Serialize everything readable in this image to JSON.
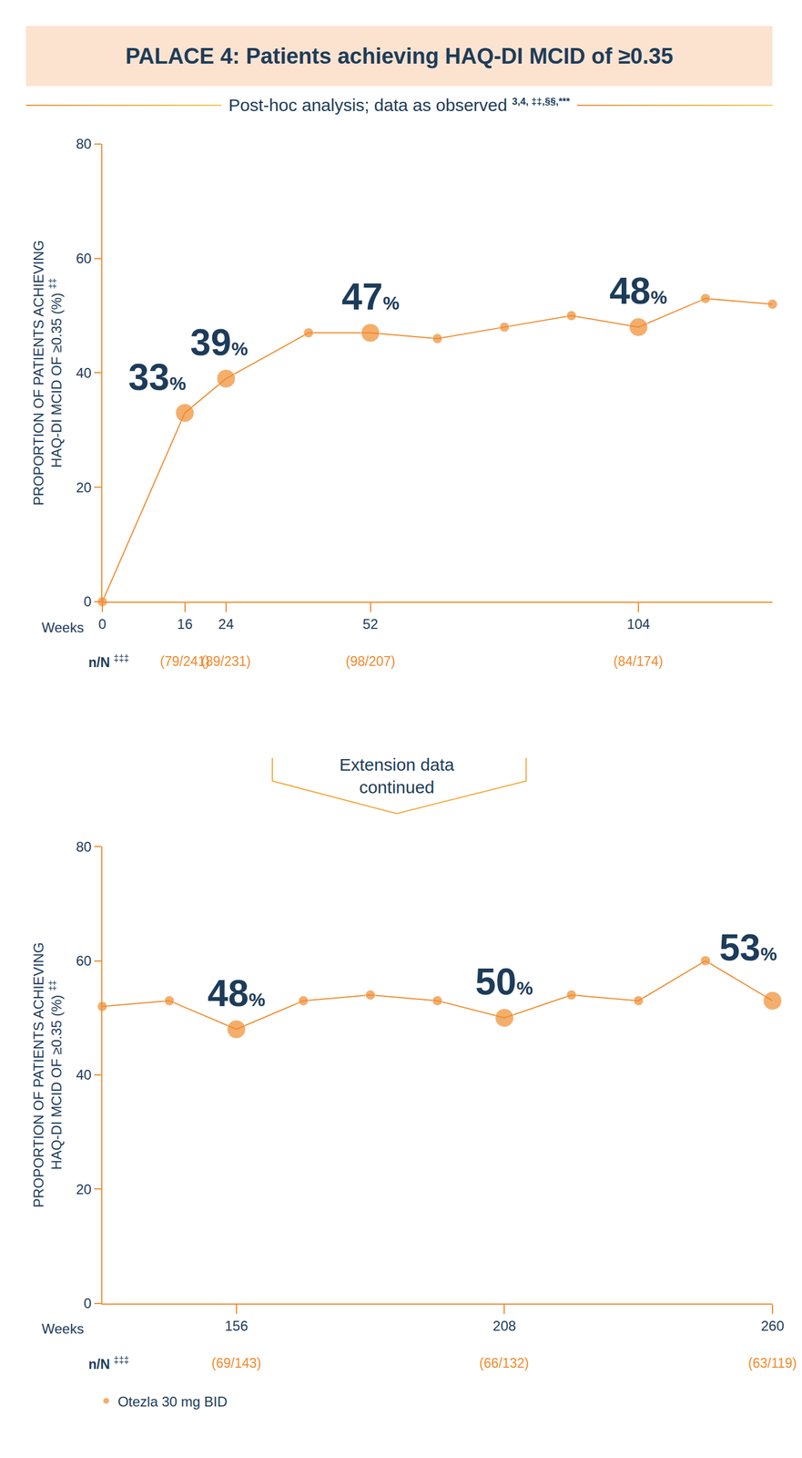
{
  "title": "PALACE 4: Patients achieving HAQ-DI MCID of ≥0.35",
  "subtitle": "Post-hoc analysis; data as observed",
  "subtitle_refs": "3,4, ‡‡,§§,***",
  "extension_note": [
    "Extension data",
    "continued"
  ],
  "chart_data": [
    {
      "type": "line",
      "xlabel": "Weeks",
      "ylabel": [
        "PROPORTION OF PATIENTS ACHIEVING",
        "HAQ-DI MCID OF ≥0.35 (%)"
      ],
      "ylabel_ref": "‡‡",
      "counts_label": "n/N",
      "counts_label_ref": "‡‡‡",
      "x": [
        0,
        16,
        24,
        40,
        52,
        65,
        78,
        91,
        104,
        117,
        130
      ],
      "series": [
        {
          "name": "Otezla 30 mg BID",
          "color": "#f08c2e",
          "values": [
            0,
            33,
            39,
            47,
            47,
            46,
            48,
            50,
            48,
            53,
            52
          ],
          "value_labels": [
            null,
            "33%",
            "39%",
            null,
            "47%",
            null,
            null,
            null,
            "48%",
            null,
            null
          ],
          "counts": [
            null,
            "(79/241)",
            "(89/231)",
            null,
            "(98/207)",
            null,
            null,
            null,
            "(84/174)",
            null,
            null
          ]
        }
      ],
      "xlim": [
        0,
        130
      ],
      "xticks": [
        0,
        16,
        24,
        52,
        104
      ],
      "ylim": [
        0,
        80
      ],
      "yticks": [
        0,
        20,
        40,
        60,
        80
      ],
      "grid": false
    },
    {
      "type": "line",
      "xlabel": "Weeks",
      "ylabel": [
        "PROPORTION OF PATIENTS ACHIEVING",
        "HAQ-DI MCID OF ≥0.35 (%)"
      ],
      "ylabel_ref": "‡‡",
      "counts_label": "n/N",
      "counts_label_ref": "‡‡‡",
      "x": [
        130,
        143,
        156,
        169,
        182,
        195,
        208,
        221,
        234,
        247,
        260
      ],
      "series": [
        {
          "name": "Otezla 30 mg BID",
          "color": "#f08c2e",
          "values": [
            52,
            53,
            48,
            53,
            54,
            53,
            50,
            54,
            53,
            60,
            53
          ],
          "value_labels": [
            null,
            null,
            "48%",
            null,
            null,
            null,
            "50%",
            null,
            null,
            null,
            "53%"
          ],
          "counts": [
            null,
            null,
            "(69/143)",
            null,
            null,
            null,
            "(66/132)",
            null,
            null,
            null,
            "(63/119)"
          ]
        }
      ],
      "xlim": [
        130,
        260
      ],
      "xticks": [
        156,
        208,
        260
      ],
      "ylim": [
        0,
        80
      ],
      "yticks": [
        0,
        20,
        40,
        60,
        80
      ],
      "grid": false,
      "legend": "bottom left"
    }
  ]
}
